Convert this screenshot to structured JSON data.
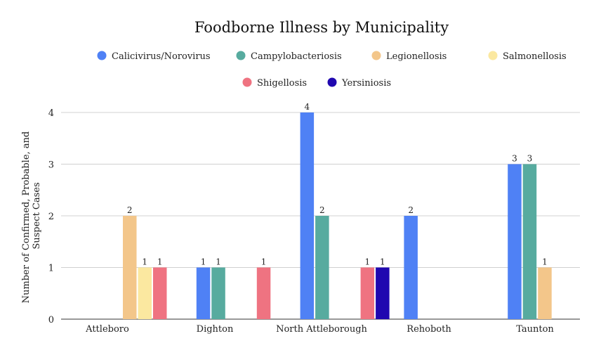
{
  "chart_data": {
    "type": "bar",
    "title": "Foodborne Illness by Municipality",
    "xlabel": "",
    "ylabel_lines": [
      "Number of Confirmed, Probable, and",
      "Suspect Cases"
    ],
    "ylim": [
      0,
      4
    ],
    "yticks": [
      "0",
      "1",
      "2",
      "3",
      "4"
    ],
    "legend_position": "top",
    "grid": true,
    "categories": [
      "Attleboro",
      "Dighton",
      "North Attleborough",
      "Rehoboth",
      "Taunton"
    ],
    "series": [
      {
        "name": "Calicivirus/Norovirus",
        "color": "#4f81f5",
        "values": [
          0,
          1,
          4,
          2,
          3
        ]
      },
      {
        "name": "Campylobacteriosis",
        "color": "#57ab9f",
        "values": [
          0,
          1,
          2,
          0,
          3
        ]
      },
      {
        "name": "Legionellosis",
        "color": "#f3c68a",
        "values": [
          2,
          0,
          0,
          0,
          1
        ]
      },
      {
        "name": "Salmonellosis",
        "color": "#fbe8a0",
        "values": [
          1,
          0,
          0,
          0,
          0
        ]
      },
      {
        "name": "Shigellosis",
        "color": "#ef7381",
        "values": [
          1,
          1,
          1,
          0,
          0
        ]
      },
      {
        "name": "Yersiniosis",
        "color": "#2008b0",
        "values": [
          0,
          0,
          1,
          0,
          0
        ]
      }
    ],
    "data_labels": {
      "Attleboro": [
        "",
        "",
        "2",
        "1",
        "1",
        ""
      ],
      "Dighton": [
        "1",
        "1",
        "",
        "",
        "1",
        ""
      ],
      "North Attleborough": [
        "4",
        "2",
        "",
        "",
        "1",
        "1"
      ],
      "Rehoboth": [
        "2",
        "",
        "",
        "",
        "",
        ""
      ],
      "Taunton": [
        "3",
        "3",
        "1",
        "",
        "",
        ""
      ]
    }
  }
}
